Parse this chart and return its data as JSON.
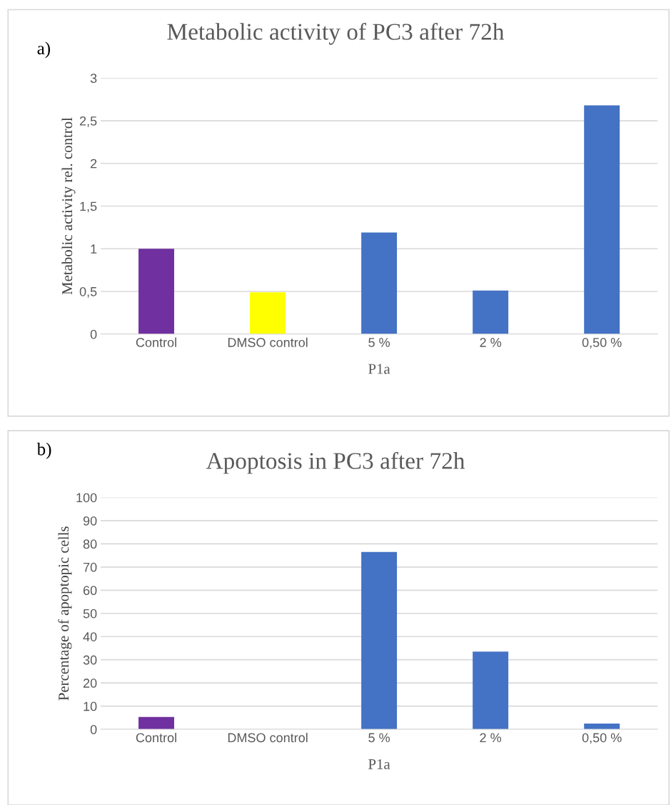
{
  "chart_data": [
    {
      "type": "bar",
      "title": "Metabolic activity of PC3 after 72h",
      "xlabel": "P1a",
      "ylabel": "Metabolic activity rel. control",
      "annotations": [
        "a)"
      ],
      "categories": [
        "Control",
        "DMSO control",
        "5 %",
        "2 %",
        "0,50 %"
      ],
      "values": [
        1.0,
        0.49,
        1.19,
        0.51,
        2.68
      ],
      "colors": [
        "#7030a0",
        "#ffff00",
        "#4472c4",
        "#4472c4",
        "#4472c4"
      ],
      "ylim": [
        0,
        3
      ],
      "yticks": [
        0,
        {
          "value": 0.5,
          "label": "0,5"
        },
        1,
        {
          "value": 1.5,
          "label": "1,5"
        },
        2,
        {
          "value": 2.5,
          "label": "2,5"
        },
        3
      ],
      "grid": "y",
      "legend": false
    },
    {
      "type": "bar",
      "title": "Apoptosis in PC3 after 72h",
      "xlabel": "P1a",
      "ylabel": "Percentage of apoptopic cells",
      "annotations": [
        "b)"
      ],
      "categories": [
        "Control",
        "DMSO control",
        "5 %",
        "2 %",
        "0,50 %"
      ],
      "values": [
        5.3,
        0,
        76.5,
        33.5,
        2.5
      ],
      "colors": [
        "#7030a0",
        null,
        "#4472c4",
        "#4472c4",
        "#4472c4"
      ],
      "ylim": [
        0,
        100
      ],
      "yticks": [
        0,
        10,
        20,
        30,
        40,
        50,
        60,
        70,
        80,
        90,
        100
      ],
      "grid": "y",
      "legend": false
    }
  ]
}
